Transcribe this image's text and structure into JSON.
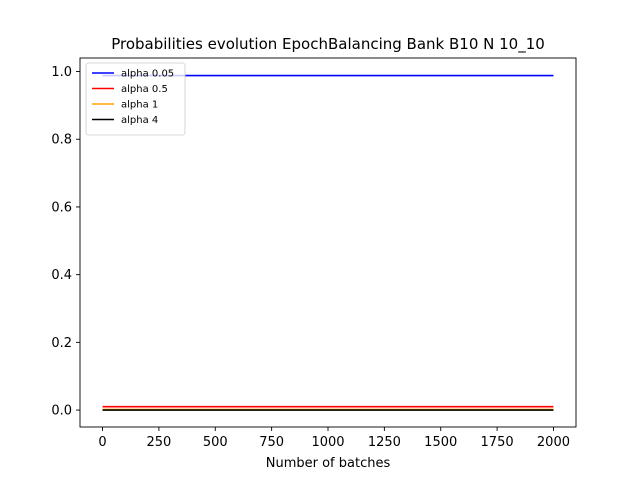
{
  "chart_data": {
    "type": "line",
    "title": "Probabilities evolution EpochBalancing Bank B10 N 10_10",
    "xlabel": "Number of batches",
    "ylabel": "",
    "xlim": [
      -100,
      2100
    ],
    "ylim": [
      -0.05,
      1.04
    ],
    "xticks": [
      0,
      250,
      500,
      750,
      1000,
      1250,
      1500,
      1750,
      2000
    ],
    "yticks": [
      0.0,
      0.2,
      0.4,
      0.6,
      0.8,
      1.0
    ],
    "xtick_labels": [
      "0",
      "250",
      "500",
      "750",
      "1000",
      "1250",
      "1500",
      "1750",
      "2000"
    ],
    "ytick_labels": [
      "0.0",
      "0.2",
      "0.4",
      "0.6",
      "0.8",
      "1.0"
    ],
    "grid": false,
    "legend_position": "top-left",
    "series": [
      {
        "name": "alpha 0.05",
        "color": "#0000ff",
        "x": [
          0,
          2000
        ],
        "y": [
          0.988,
          0.988
        ]
      },
      {
        "name": "alpha 0.5",
        "color": "#ff0000",
        "x": [
          0,
          2000
        ],
        "y": [
          0.01,
          0.01
        ]
      },
      {
        "name": "alpha 1",
        "color": "#ffa500",
        "x": [
          0,
          2000
        ],
        "y": [
          0.002,
          0.002
        ]
      },
      {
        "name": "alpha 4",
        "color": "#000000",
        "x": [
          0,
          2000
        ],
        "y": [
          0.0,
          0.0
        ]
      }
    ]
  }
}
